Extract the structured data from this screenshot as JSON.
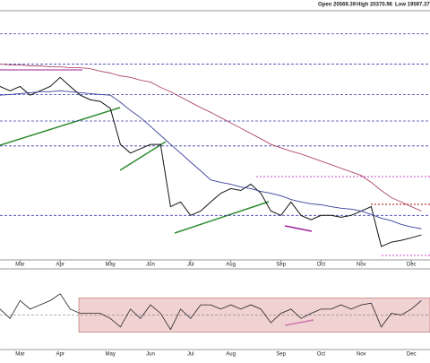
{
  "chart_data": {
    "type": "line",
    "header": [
      "Open 20569.39",
      "High 20370.96",
      "Low 19597.37"
    ],
    "categories": [
      null,
      null,
      "Mar",
      null,
      null,
      null,
      "Apr",
      null,
      null,
      null,
      null,
      "May",
      null,
      null,
      null,
      "Jun",
      null,
      null,
      null,
      "Jul",
      null,
      null,
      null,
      "Aug",
      null,
      null,
      null,
      null,
      "Sep",
      null,
      null,
      null,
      "Oct",
      null,
      null,
      null,
      "Nov",
      null,
      null,
      null,
      null,
      "Dec",
      null
    ],
    "series": [
      {
        "color": "#111111",
        "values": [
          24570,
          24430,
          24570,
          24290,
          24430,
          24570,
          24860,
          24570,
          24290,
          24140,
          24090,
          23860,
          22710,
          22430,
          22570,
          22710,
          22710,
          20710,
          20860,
          20430,
          20570,
          20860,
          21140,
          21290,
          21230,
          21430,
          21140,
          20570,
          20430,
          20860,
          20430,
          20290,
          20430,
          20430,
          20370,
          20430,
          20570,
          20710,
          19430,
          19570,
          19630,
          19710,
          19800
        ]
      },
      {
        "color": "#3a3f9a",
        "values": [
          24290,
          24310,
          24340,
          24370,
          24400,
          24400,
          24430,
          24400,
          24370,
          24340,
          24310,
          24290,
          24060,
          23800,
          23570,
          23290,
          23000,
          22710,
          22430,
          22140,
          21860,
          21570,
          21490,
          21430,
          21340,
          21290,
          21200,
          21140,
          21060,
          20940,
          20860,
          20800,
          20770,
          20710,
          20660,
          20630,
          20570,
          20460,
          20340,
          20260,
          20140,
          20060,
          20000
        ]
      },
      {
        "color": "#b04a6a",
        "values": [
          25290,
          25260,
          25260,
          25230,
          25230,
          25200,
          25200,
          25170,
          25170,
          25140,
          25060,
          25000,
          24910,
          24860,
          24770,
          24710,
          24540,
          24400,
          24230,
          24060,
          23890,
          23740,
          23570,
          23400,
          23230,
          23060,
          22890,
          22710,
          22600,
          22490,
          22400,
          22290,
          22170,
          22060,
          21940,
          21830,
          21710,
          21490,
          21230,
          21000,
          20860,
          20710,
          20570
        ]
      }
    ],
    "ylim": [
      19000,
      27000
    ],
    "levels": [
      26260,
      25290,
      24310,
      23460,
      22660,
      20430
    ],
    "level_color": "#3a3fb0",
    "rsi": {
      "color": "#222222",
      "band_color": "#e8b4b4",
      "values": [
        57,
        46,
        67,
        57,
        62,
        67,
        75,
        57,
        52,
        52,
        52,
        46,
        36,
        57,
        46,
        62,
        52,
        33,
        57,
        46,
        62,
        62,
        57,
        62,
        57,
        62,
        57,
        41,
        52,
        57,
        46,
        52,
        57,
        57,
        62,
        57,
        62,
        64,
        36,
        52,
        50,
        57,
        67
      ],
      "ylim": [
        0,
        100
      ],
      "band": [
        30,
        70
      ],
      "mid": 50
    }
  }
}
